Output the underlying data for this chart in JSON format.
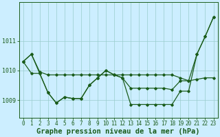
{
  "title": "Graphe pression niveau de la mer (hPa)",
  "background_color": "#cceeff",
  "line_color": "#1a5c1a",
  "grid_color": "#99cccc",
  "xlim": [
    -0.5,
    23.5
  ],
  "ylim": [
    1008.4,
    1012.3
  ],
  "yticks": [
    1009,
    1010,
    1011
  ],
  "xticks": [
    0,
    1,
    2,
    3,
    4,
    5,
    6,
    7,
    8,
    9,
    10,
    11,
    12,
    13,
    14,
    15,
    16,
    17,
    18,
    19,
    20,
    21,
    22,
    23
  ],
  "series": [
    [
      1010.3,
      1010.55,
      1009.95,
      1009.85,
      1009.85,
      1009.85,
      1009.85,
      1009.85,
      1009.85,
      1009.85,
      1009.85,
      1009.85,
      1009.85,
      1009.85,
      1009.85,
      1009.85,
      1009.85,
      1009.85,
      1009.85,
      1009.75,
      1009.65,
      1009.7,
      1009.75,
      1009.75
    ],
    [
      1010.3,
      1009.9,
      1009.9,
      1009.25,
      1008.9,
      1009.1,
      1009.05,
      1009.05,
      1009.5,
      1009.75,
      1010.0,
      1009.85,
      1009.75,
      1009.4,
      1009.4,
      1009.4,
      1009.4,
      1009.4,
      1009.35,
      1009.65,
      1009.65,
      1010.55,
      1011.15,
      1011.8
    ],
    [
      1010.3,
      1010.55,
      1009.9,
      1009.25,
      1008.9,
      1009.1,
      1009.05,
      1009.05,
      1009.5,
      1009.75,
      1010.0,
      1009.85,
      1009.75,
      1008.85,
      1008.85,
      1008.85,
      1008.85,
      1008.85,
      1008.85,
      1009.3,
      1009.3,
      1010.55,
      1011.15,
      1011.8
    ]
  ],
  "title_fontsize": 7.5,
  "tick_fontsize": 5.5,
  "marker_size": 1.8,
  "line_width": 0.9
}
